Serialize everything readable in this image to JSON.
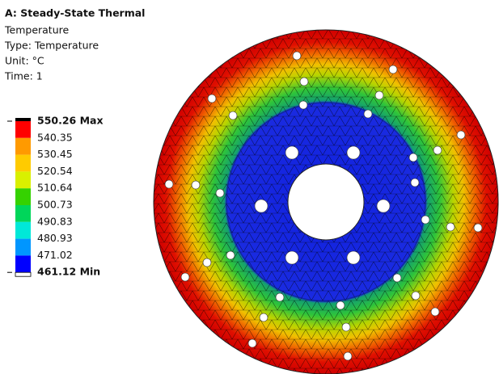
{
  "header": {
    "title": "A: Steady-State Thermal",
    "lines": [
      "Temperature",
      "Type: Temperature",
      "Unit: °C",
      "Time: 1"
    ]
  },
  "legend": {
    "labels": [
      "550.26 Max",
      "540.35",
      "530.45",
      "520.54",
      "510.64",
      "500.73",
      "490.83",
      "480.93",
      "471.02",
      "461.12 Min"
    ],
    "colors": [
      "#ff0000",
      "#ff9a00",
      "#ffcb00",
      "#d9f000",
      "#35d200",
      "#00d65a",
      "#00e8d8",
      "#0096ff",
      "#0000ff"
    ]
  }
}
